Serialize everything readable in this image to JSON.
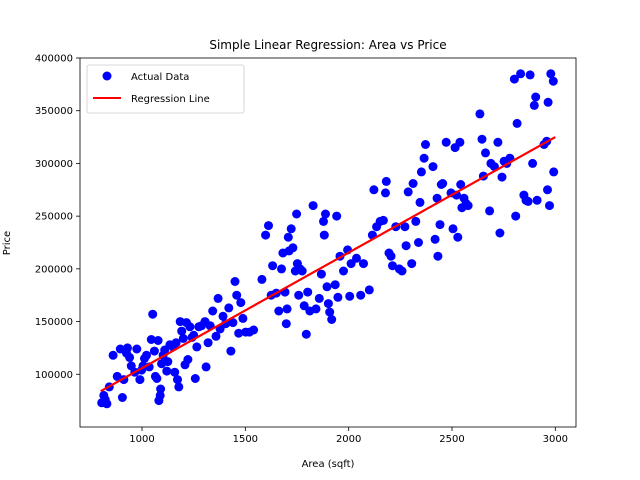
{
  "chart_data": {
    "type": "scatter",
    "title": "Simple Linear Regression: Area vs Price",
    "xlabel": "Area (sqft)",
    "ylabel": "Price",
    "xlim": [
      700,
      3100
    ],
    "ylim": [
      50000,
      400000
    ],
    "xticks": [
      1000,
      1500,
      2000,
      2500,
      3000
    ],
    "yticks": [
      100000,
      150000,
      200000,
      250000,
      300000,
      350000,
      400000
    ],
    "xtick_labels": [
      "1000",
      "1500",
      "2000",
      "2500",
      "3000"
    ],
    "ytick_labels": [
      "100000",
      "150000",
      "200000",
      "250000",
      "300000",
      "350000",
      "400000"
    ],
    "grid": false,
    "legend_position": "top-left",
    "series": [
      {
        "name": "Actual Data",
        "kind": "scatter",
        "color": "#0000ff",
        "points": [
          [
            805,
            73000
          ],
          [
            815,
            80000
          ],
          [
            822,
            76000
          ],
          [
            830,
            72000
          ],
          [
            842,
            88000
          ],
          [
            860,
            118000
          ],
          [
            880,
            98000
          ],
          [
            895,
            124000
          ],
          [
            905,
            78000
          ],
          [
            912,
            95000
          ],
          [
            925,
            120000
          ],
          [
            930,
            125000
          ],
          [
            940,
            116000
          ],
          [
            948,
            108000
          ],
          [
            965,
            102000
          ],
          [
            975,
            124000
          ],
          [
            990,
            95000
          ],
          [
            998,
            104000
          ],
          [
            1005,
            108000
          ],
          [
            1012,
            115000
          ],
          [
            1022,
            118000
          ],
          [
            1035,
            107000
          ],
          [
            1045,
            133000
          ],
          [
            1052,
            157000
          ],
          [
            1060,
            122000
          ],
          [
            1065,
            98000
          ],
          [
            1072,
            96000
          ],
          [
            1078,
            132000
          ],
          [
            1082,
            75000
          ],
          [
            1088,
            80000
          ],
          [
            1090,
            86000
          ],
          [
            1095,
            110000
          ],
          [
            1102,
            118000
          ],
          [
            1110,
            123000
          ],
          [
            1120,
            103000
          ],
          [
            1125,
            112000
          ],
          [
            1135,
            128000
          ],
          [
            1150,
            126000
          ],
          [
            1158,
            102000
          ],
          [
            1165,
            130000
          ],
          [
            1172,
            95000
          ],
          [
            1178,
            88000
          ],
          [
            1185,
            150000
          ],
          [
            1192,
            141000
          ],
          [
            1200,
            134000
          ],
          [
            1208,
            109000
          ],
          [
            1215,
            149000
          ],
          [
            1222,
            114000
          ],
          [
            1232,
            145000
          ],
          [
            1242,
            135000
          ],
          [
            1250,
            137000
          ],
          [
            1258,
            96000
          ],
          [
            1265,
            126000
          ],
          [
            1275,
            145000
          ],
          [
            1288,
            146000
          ],
          [
            1305,
            150000
          ],
          [
            1310,
            107000
          ],
          [
            1320,
            130000
          ],
          [
            1330,
            146000
          ],
          [
            1342,
            160000
          ],
          [
            1358,
            136000
          ],
          [
            1368,
            172000
          ],
          [
            1378,
            143000
          ],
          [
            1392,
            155000
          ],
          [
            1405,
            148000
          ],
          [
            1420,
            163000
          ],
          [
            1430,
            122000
          ],
          [
            1440,
            149000
          ],
          [
            1450,
            188000
          ],
          [
            1458,
            175000
          ],
          [
            1468,
            139000
          ],
          [
            1478,
            168000
          ],
          [
            1488,
            153000
          ],
          [
            1502,
            140000
          ],
          [
            1520,
            140000
          ],
          [
            1540,
            142000
          ],
          [
            1580,
            190000
          ],
          [
            1598,
            232000
          ],
          [
            1612,
            241000
          ],
          [
            1625,
            175000
          ],
          [
            1632,
            203000
          ],
          [
            1650,
            177000
          ],
          [
            1662,
            160000
          ],
          [
            1675,
            200000
          ],
          [
            1682,
            215000
          ],
          [
            1692,
            178000
          ],
          [
            1698,
            148000
          ],
          [
            1702,
            162000
          ],
          [
            1708,
            230000
          ],
          [
            1712,
            217000
          ],
          [
            1722,
            238000
          ],
          [
            1730,
            220000
          ],
          [
            1742,
            198000
          ],
          [
            1748,
            252000
          ],
          [
            1752,
            205000
          ],
          [
            1758,
            175000
          ],
          [
            1765,
            200000
          ],
          [
            1775,
            198000
          ],
          [
            1785,
            165000
          ],
          [
            1795,
            138000
          ],
          [
            1802,
            178000
          ],
          [
            1812,
            160000
          ],
          [
            1828,
            260000
          ],
          [
            1842,
            162000
          ],
          [
            1858,
            172000
          ],
          [
            1868,
            195000
          ],
          [
            1878,
            245000
          ],
          [
            1882,
            232000
          ],
          [
            1888,
            252000
          ],
          [
            1895,
            183000
          ],
          [
            1902,
            167000
          ],
          [
            1908,
            159000
          ],
          [
            1918,
            152000
          ],
          [
            1935,
            185000
          ],
          [
            1942,
            250000
          ],
          [
            1948,
            173000
          ],
          [
            1958,
            212000
          ],
          [
            1975,
            198000
          ],
          [
            1995,
            218000
          ],
          [
            2005,
            174000
          ],
          [
            2012,
            205000
          ],
          [
            2038,
            210000
          ],
          [
            2058,
            175000
          ],
          [
            2072,
            205000
          ],
          [
            2100,
            180000
          ],
          [
            2115,
            232000
          ],
          [
            2122,
            275000
          ],
          [
            2135,
            240000
          ],
          [
            2152,
            245000
          ],
          [
            2168,
            246000
          ],
          [
            2178,
            272000
          ],
          [
            2182,
            283000
          ],
          [
            2195,
            215000
          ],
          [
            2205,
            212000
          ],
          [
            2212,
            203000
          ],
          [
            2228,
            240000
          ],
          [
            2245,
            200000
          ],
          [
            2258,
            198000
          ],
          [
            2272,
            240000
          ],
          [
            2278,
            222000
          ],
          [
            2288,
            273000
          ],
          [
            2305,
            205000
          ],
          [
            2312,
            281000
          ],
          [
            2325,
            245000
          ],
          [
            2338,
            225000
          ],
          [
            2345,
            263000
          ],
          [
            2352,
            292000
          ],
          [
            2365,
            305000
          ],
          [
            2372,
            318000
          ],
          [
            2408,
            297000
          ],
          [
            2418,
            228000
          ],
          [
            2428,
            267000
          ],
          [
            2432,
            212000
          ],
          [
            2442,
            242000
          ],
          [
            2448,
            280000
          ],
          [
            2455,
            281000
          ],
          [
            2472,
            320000
          ],
          [
            2495,
            272000
          ],
          [
            2505,
            238000
          ],
          [
            2515,
            315000
          ],
          [
            2522,
            270000
          ],
          [
            2528,
            230000
          ],
          [
            2538,
            320000
          ],
          [
            2542,
            280000
          ],
          [
            2548,
            258000
          ],
          [
            2558,
            267000
          ],
          [
            2568,
            262000
          ],
          [
            2578,
            260000
          ],
          [
            2635,
            347000
          ],
          [
            2645,
            323000
          ],
          [
            2652,
            288000
          ],
          [
            2662,
            310000
          ],
          [
            2682,
            255000
          ],
          [
            2688,
            300000
          ],
          [
            2705,
            297000
          ],
          [
            2722,
            320000
          ],
          [
            2732,
            234000
          ],
          [
            2742,
            287000
          ],
          [
            2752,
            302000
          ],
          [
            2765,
            300000
          ],
          [
            2780,
            305000
          ],
          [
            2802,
            380000
          ],
          [
            2808,
            250000
          ],
          [
            2815,
            338000
          ],
          [
            2832,
            385000
          ],
          [
            2848,
            270000
          ],
          [
            2858,
            265000
          ],
          [
            2868,
            264000
          ],
          [
            2878,
            384000
          ],
          [
            2890,
            300000
          ],
          [
            2898,
            355000
          ],
          [
            2905,
            363000
          ],
          [
            2912,
            265000
          ],
          [
            2945,
            318000
          ],
          [
            2958,
            321000
          ],
          [
            2962,
            275000
          ],
          [
            2965,
            358000
          ],
          [
            2972,
            260000
          ],
          [
            2978,
            385000
          ],
          [
            2990,
            378000
          ],
          [
            2992,
            292000
          ]
        ]
      },
      {
        "name": "Regression Line",
        "kind": "line",
        "color": "#ff0000",
        "points": [
          [
            800,
            84000
          ],
          [
            3000,
            325000
          ]
        ]
      }
    ]
  }
}
